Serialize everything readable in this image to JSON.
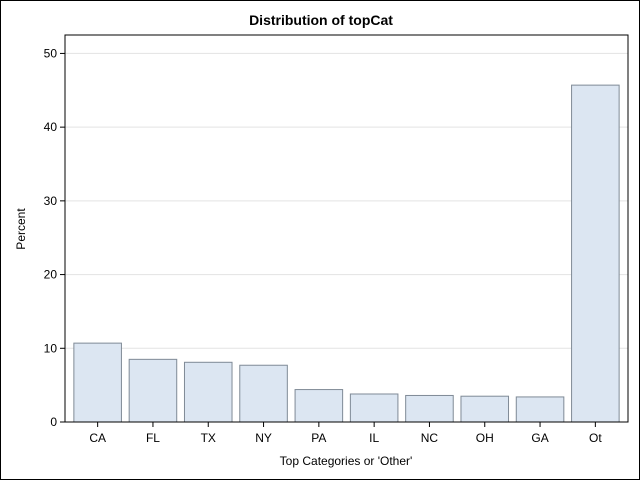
{
  "chart_data": {
    "type": "bar",
    "title": "Distribution of topCat",
    "xlabel": "Top Categories or 'Other'",
    "ylabel": "Percent",
    "categories": [
      "CA",
      "FL",
      "TX",
      "NY",
      "PA",
      "IL",
      "NC",
      "OH",
      "GA",
      "Ot"
    ],
    "values": [
      10.7,
      8.5,
      8.1,
      7.7,
      4.4,
      3.8,
      3.6,
      3.5,
      3.4,
      45.7
    ],
    "ylim": [
      0,
      52.5
    ],
    "yticks": [
      0,
      10,
      20,
      30,
      40,
      50
    ],
    "grid": true,
    "bar_fill": "#dce6f2",
    "bar_stroke": "#7f8a96",
    "grid_color": "#e3e3e3"
  }
}
